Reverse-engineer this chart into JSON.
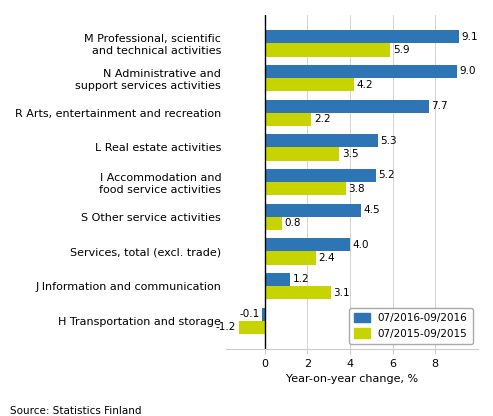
{
  "categories": [
    "H Transportation and storage",
    "J Information and communication",
    "Services, total (excl. trade)",
    "S Other service activities",
    "I Accommodation and\nfood service activities",
    "L Real estate activities",
    "R Arts, entertainment and recreation",
    "N Administrative and\nsupport services activities",
    "M Professional, scientific\nand technical activities"
  ],
  "values_2016": [
    -0.1,
    1.2,
    4.0,
    4.5,
    5.2,
    5.3,
    7.7,
    9.0,
    9.1
  ],
  "values_2015": [
    -1.2,
    3.1,
    2.4,
    0.8,
    3.8,
    3.5,
    2.2,
    4.2,
    5.9
  ],
  "color_2016": "#2E75B6",
  "color_2015": "#C8D400",
  "xlabel": "Year-on-year change, %",
  "legend_2016": "07/2016-09/2016",
  "legend_2015": "07/2015-09/2015",
  "source": "Source: Statistics Finland",
  "xlim": [
    -1.8,
    10.0
  ],
  "xticks": [
    0,
    2,
    4,
    6,
    8
  ],
  "bar_height": 0.38,
  "label_fontsize": 8,
  "tick_fontsize": 8,
  "value_fontsize": 7.5
}
